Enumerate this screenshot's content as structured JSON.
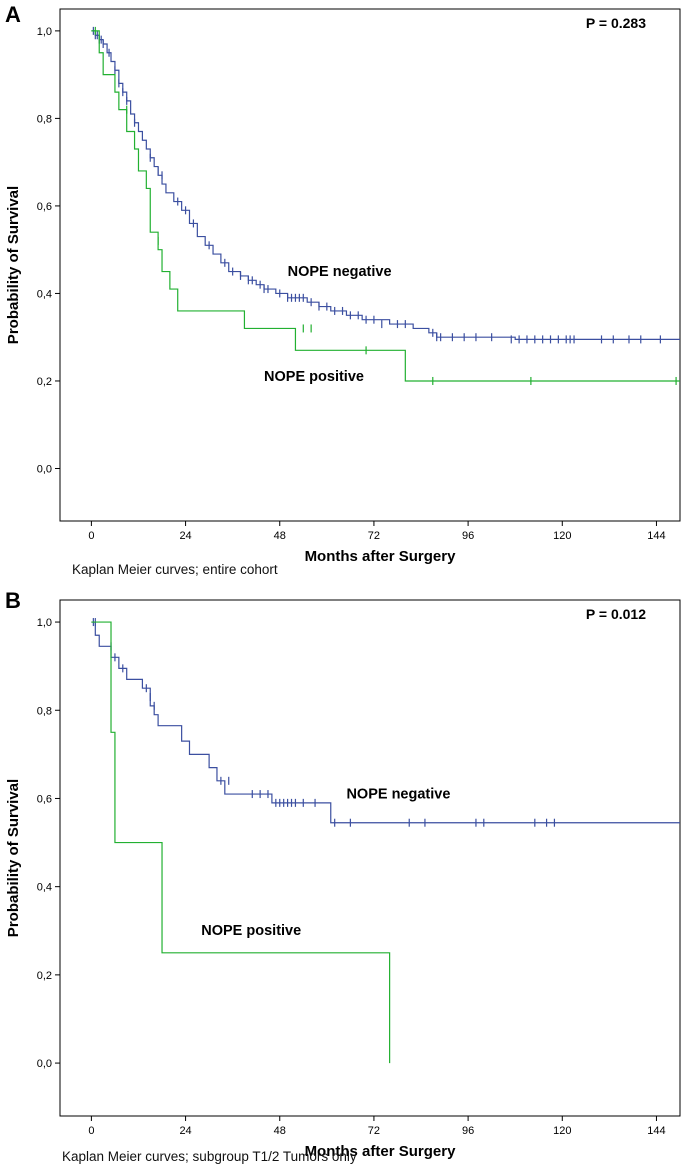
{
  "chart_data": [
    {
      "type": "line",
      "panel_label": "A",
      "annotation": "P = 0.283",
      "caption": "Kaplan Meier curves; entire cohort",
      "xlabel": "Months after Surgery",
      "ylabel": "Probability of Survival",
      "xlim": [
        -8,
        150
      ],
      "ylim": [
        -0.12,
        1.05
      ],
      "xticks": [
        0,
        24,
        48,
        72,
        96,
        120,
        144
      ],
      "yticks": [
        0.0,
        0.2,
        0.4,
        0.6,
        0.8,
        1.0
      ],
      "ytick_labels": [
        "0,0",
        "0,2",
        "0,4",
        "0,6",
        "0,8",
        "1,0"
      ],
      "grid": false,
      "series": [
        {
          "name": "NOPE negative",
          "color": "#3b4fa0",
          "steps": [
            [
              0,
              1.0
            ],
            [
              1,
              0.99
            ],
            [
              2,
              0.98
            ],
            [
              3,
              0.97
            ],
            [
              4,
              0.95
            ],
            [
              5,
              0.93
            ],
            [
              6,
              0.91
            ],
            [
              7,
              0.88
            ],
            [
              8,
              0.86
            ],
            [
              9,
              0.84
            ],
            [
              10,
              0.81
            ],
            [
              11,
              0.79
            ],
            [
              12,
              0.77
            ],
            [
              13,
              0.75
            ],
            [
              14,
              0.73
            ],
            [
              15,
              0.71
            ],
            [
              16,
              0.69
            ],
            [
              17,
              0.67
            ],
            [
              18,
              0.65
            ],
            [
              19,
              0.63
            ],
            [
              21,
              0.61
            ],
            [
              23,
              0.59
            ],
            [
              25,
              0.56
            ],
            [
              27,
              0.53
            ],
            [
              29,
              0.51
            ],
            [
              31,
              0.49
            ],
            [
              33,
              0.47
            ],
            [
              35,
              0.45
            ],
            [
              38,
              0.44
            ],
            [
              40,
              0.43
            ],
            [
              42,
              0.42
            ],
            [
              44,
              0.41
            ],
            [
              47,
              0.4
            ],
            [
              50,
              0.39
            ],
            [
              55,
              0.38
            ],
            [
              58,
              0.37
            ],
            [
              61,
              0.36
            ],
            [
              65,
              0.35
            ],
            [
              69,
              0.34
            ],
            [
              76,
              0.33
            ],
            [
              82,
              0.32
            ],
            [
              86,
              0.31
            ],
            [
              88,
              0.3
            ],
            [
              104,
              0.3
            ],
            [
              108,
              0.295
            ],
            [
              150,
              0.295
            ]
          ],
          "censored": [
            [
              0.5,
              1.0
            ],
            [
              1,
              0.99
            ],
            [
              1.5,
              0.99
            ],
            [
              2,
              0.98
            ],
            [
              2.5,
              0.98
            ],
            [
              3,
              0.97
            ],
            [
              4.5,
              0.95
            ],
            [
              6,
              0.91
            ],
            [
              7,
              0.88
            ],
            [
              8,
              0.86
            ],
            [
              9,
              0.84
            ],
            [
              11,
              0.79
            ],
            [
              15,
              0.71
            ],
            [
              17,
              0.68
            ],
            [
              18,
              0.67
            ],
            [
              22,
              0.61
            ],
            [
              24,
              0.59
            ],
            [
              26,
              0.56
            ],
            [
              30,
              0.51
            ],
            [
              34,
              0.47
            ],
            [
              36,
              0.45
            ],
            [
              38,
              0.44
            ],
            [
              40,
              0.43
            ],
            [
              41,
              0.43
            ],
            [
              43,
              0.42
            ],
            [
              44,
              0.41
            ],
            [
              45,
              0.41
            ],
            [
              48,
              0.4
            ],
            [
              50,
              0.39
            ],
            [
              51,
              0.39
            ],
            [
              52,
              0.39
            ],
            [
              53,
              0.39
            ],
            [
              54,
              0.39
            ],
            [
              56,
              0.38
            ],
            [
              58,
              0.37
            ],
            [
              60,
              0.37
            ],
            [
              62,
              0.36
            ],
            [
              64,
              0.36
            ],
            [
              66,
              0.35
            ],
            [
              68,
              0.35
            ],
            [
              70,
              0.34
            ],
            [
              72,
              0.34
            ],
            [
              74,
              0.33
            ],
            [
              78,
              0.33
            ],
            [
              80,
              0.33
            ],
            [
              87,
              0.31
            ],
            [
              88,
              0.3
            ],
            [
              89,
              0.3
            ],
            [
              92,
              0.3
            ],
            [
              95,
              0.3
            ],
            [
              98,
              0.3
            ],
            [
              102,
              0.3
            ],
            [
              107,
              0.295
            ],
            [
              109,
              0.295
            ],
            [
              111,
              0.295
            ],
            [
              113,
              0.295
            ],
            [
              115,
              0.295
            ],
            [
              117,
              0.295
            ],
            [
              119,
              0.295
            ],
            [
              121,
              0.295
            ],
            [
              122,
              0.295
            ],
            [
              123,
              0.295
            ],
            [
              130,
              0.295
            ],
            [
              133,
              0.295
            ],
            [
              137,
              0.295
            ],
            [
              140,
              0.295
            ],
            [
              145,
              0.295
            ]
          ]
        },
        {
          "name": "NOPE positive",
          "color": "#22b031",
          "steps": [
            [
              0,
              1.0
            ],
            [
              2,
              0.95
            ],
            [
              3,
              0.9
            ],
            [
              6,
              0.86
            ],
            [
              7,
              0.82
            ],
            [
              9,
              0.77
            ],
            [
              11,
              0.73
            ],
            [
              12,
              0.68
            ],
            [
              14,
              0.64
            ],
            [
              15,
              0.54
            ],
            [
              17,
              0.5
            ],
            [
              18,
              0.45
            ],
            [
              20,
              0.41
            ],
            [
              22,
              0.36
            ],
            [
              39,
              0.32
            ],
            [
              52,
              0.27
            ],
            [
              80,
              0.2
            ],
            [
              150,
              0.2
            ]
          ],
          "censored": [
            [
              1,
              1.0
            ],
            [
              9,
              0.82
            ],
            [
              17,
              0.52
            ],
            [
              54,
              0.32
            ],
            [
              56,
              0.32
            ],
            [
              70,
              0.27
            ],
            [
              87,
              0.2
            ],
            [
              112,
              0.2
            ],
            [
              149,
              0.2
            ]
          ]
        }
      ],
      "series_label_positions": {
        "NOPE negative": [
          50,
          0.44
        ],
        "NOPE positive": [
          44,
          0.2
        ]
      }
    },
    {
      "type": "line",
      "panel_label": "B",
      "annotation": "P = 0.012",
      "caption": "Kaplan Meier curves; subgroup T1/2 Tumors only",
      "xlabel": "Months after Surgery",
      "ylabel": "Probability of Survival",
      "xlim": [
        -8,
        150
      ],
      "ylim": [
        -0.12,
        1.05
      ],
      "xticks": [
        0,
        24,
        48,
        72,
        96,
        120,
        144
      ],
      "yticks": [
        0.0,
        0.2,
        0.4,
        0.6,
        0.8,
        1.0
      ],
      "ytick_labels": [
        "0,0",
        "0,2",
        "0,4",
        "0,6",
        "0,8",
        "1,0"
      ],
      "grid": false,
      "series": [
        {
          "name": "NOPE negative",
          "color": "#3b4fa0",
          "steps": [
            [
              0,
              1.0
            ],
            [
              1,
              0.97
            ],
            [
              2,
              0.945
            ],
            [
              5,
              0.92
            ],
            [
              7,
              0.895
            ],
            [
              9,
              0.87
            ],
            [
              13,
              0.85
            ],
            [
              15,
              0.81
            ],
            [
              16,
              0.79
            ],
            [
              17,
              0.765
            ],
            [
              23,
              0.73
            ],
            [
              25,
              0.7
            ],
            [
              30,
              0.67
            ],
            [
              32,
              0.64
            ],
            [
              34,
              0.61
            ],
            [
              40,
              0.61
            ],
            [
              46,
              0.59
            ],
            [
              60,
              0.59
            ],
            [
              61,
              0.545
            ],
            [
              150,
              0.545
            ]
          ],
          "censored": [
            [
              0.5,
              1.0
            ],
            [
              1,
              1.0
            ],
            [
              5,
              0.945
            ],
            [
              6,
              0.92
            ],
            [
              8,
              0.895
            ],
            [
              14,
              0.85
            ],
            [
              15,
              0.83
            ],
            [
              16,
              0.81
            ],
            [
              33,
              0.64
            ],
            [
              35,
              0.64
            ],
            [
              41,
              0.61
            ],
            [
              43,
              0.61
            ],
            [
              45,
              0.61
            ],
            [
              47,
              0.59
            ],
            [
              48,
              0.59
            ],
            [
              49,
              0.59
            ],
            [
              50,
              0.59
            ],
            [
              51,
              0.59
            ],
            [
              52,
              0.59
            ],
            [
              54,
              0.59
            ],
            [
              57,
              0.59
            ],
            [
              62,
              0.545
            ],
            [
              66,
              0.545
            ],
            [
              81,
              0.545
            ],
            [
              85,
              0.545
            ],
            [
              98,
              0.545
            ],
            [
              100,
              0.545
            ],
            [
              113,
              0.545
            ],
            [
              116,
              0.545
            ],
            [
              118,
              0.545
            ]
          ]
        },
        {
          "name": "NOPE positive",
          "color": "#22b031",
          "steps": [
            [
              0,
              1.0
            ],
            [
              5,
              0.75
            ],
            [
              6,
              0.5
            ],
            [
              18,
              0.25
            ],
            [
              76,
              0.0
            ]
          ],
          "censored": []
        }
      ],
      "series_label_positions": {
        "NOPE negative": [
          65,
          0.6
        ],
        "NOPE positive": [
          28,
          0.29
        ]
      }
    }
  ]
}
